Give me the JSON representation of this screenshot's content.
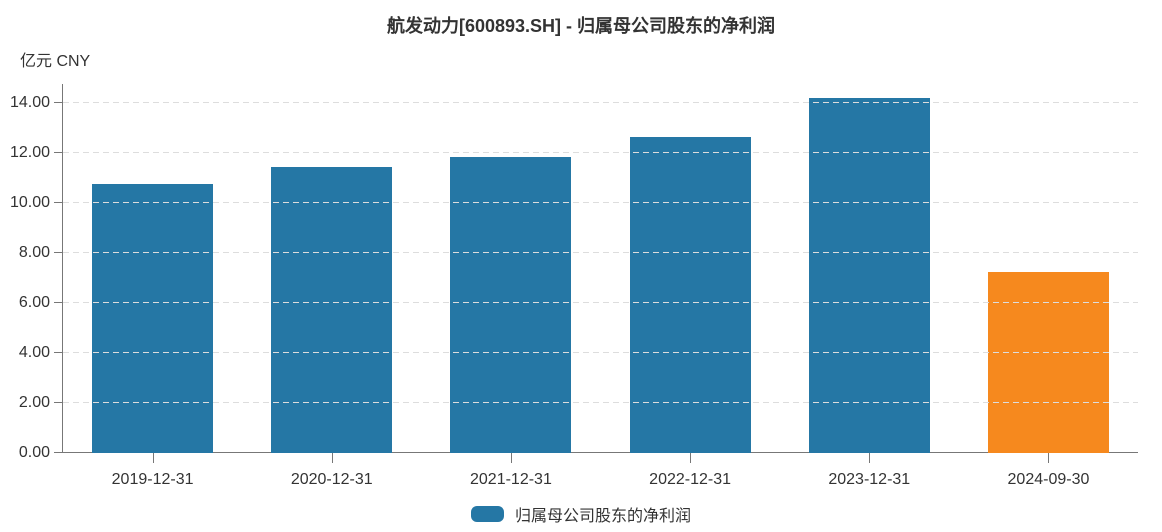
{
  "header": {
    "title": "航发动力[600893.SH] - 归属母公司股东的净利润"
  },
  "axis": {
    "unit_label": "亿元 CNY"
  },
  "legend": {
    "label": "归属母公司股东的净利润",
    "swatch_color": "#2577A5"
  },
  "colors": {
    "bar_default": "#2577A5",
    "bar_highlight": "#F6891E",
    "grid": "#DDDDDD",
    "axis_line": "#777777",
    "text": "#333333",
    "background": "#FFFFFF"
  },
  "chart_data": {
    "type": "bar",
    "title": "航发动力[600893.SH] - 归属母公司股东的净利润",
    "ylabel": "亿元 CNY",
    "xlabel": "",
    "categories": [
      "2019-12-31",
      "2020-12-31",
      "2021-12-31",
      "2022-12-31",
      "2023-12-31",
      "2024-09-30"
    ],
    "series": [
      {
        "name": "归属母公司股东的净利润",
        "values": [
          10.75,
          11.45,
          11.85,
          12.65,
          14.2,
          7.25
        ],
        "bar_colors": [
          "#2577A5",
          "#2577A5",
          "#2577A5",
          "#2577A5",
          "#2577A5",
          "#F6891E"
        ]
      }
    ],
    "ylim": [
      0,
      14.75
    ],
    "yticks": [
      0,
      2,
      4,
      6,
      8,
      10,
      12,
      14
    ],
    "ytick_labels": [
      "0.00",
      "2.00",
      "4.00",
      "6.00",
      "8.00",
      "10.00",
      "12.00",
      "14.00"
    ],
    "grid": "horizontal-dashed",
    "legend_position": "bottom-center"
  }
}
